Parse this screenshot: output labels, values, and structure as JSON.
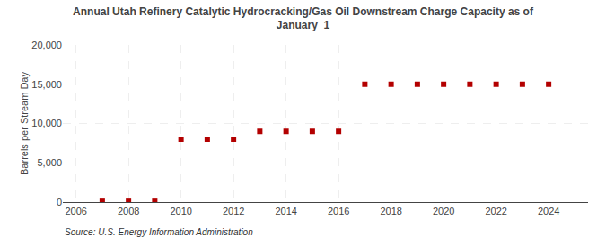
{
  "chart_data": {
    "type": "scatter",
    "title": "Annual Utah Refinery Catalytic Hydrocracking/Gas Oil Downstream Charge Capacity as of\nJanuary  1",
    "ylabel": "Barrels per Stream Day",
    "annotations": [
      "Source: U.S. Energy Information Administration"
    ],
    "x": [
      2007,
      2008,
      2009,
      2010,
      2011,
      2012,
      2013,
      2014,
      2015,
      2016,
      2017,
      2018,
      2019,
      2020,
      2021,
      2022,
      2023,
      2024
    ],
    "values": [
      100,
      100,
      100,
      8000,
      8000,
      8000,
      9000,
      9000,
      9000,
      9000,
      15000,
      15000,
      15000,
      15000,
      15000,
      15000,
      15000,
      15000
    ],
    "color": "#b30000",
    "marker": "square",
    "xlim": [
      2005.5,
      2025.5
    ],
    "ylim": [
      0,
      20000
    ],
    "xticks": [
      2006,
      2008,
      2010,
      2012,
      2014,
      2016,
      2018,
      2020,
      2022,
      2024
    ],
    "yticks": [
      0,
      {
        "value": 5000,
        "label": "5,000"
      },
      {
        "value": 10000,
        "label": "10,000"
      },
      {
        "value": 15000,
        "label": "15,000"
      },
      {
        "value": 20000,
        "label": "20,000"
      }
    ],
    "grid": true
  }
}
